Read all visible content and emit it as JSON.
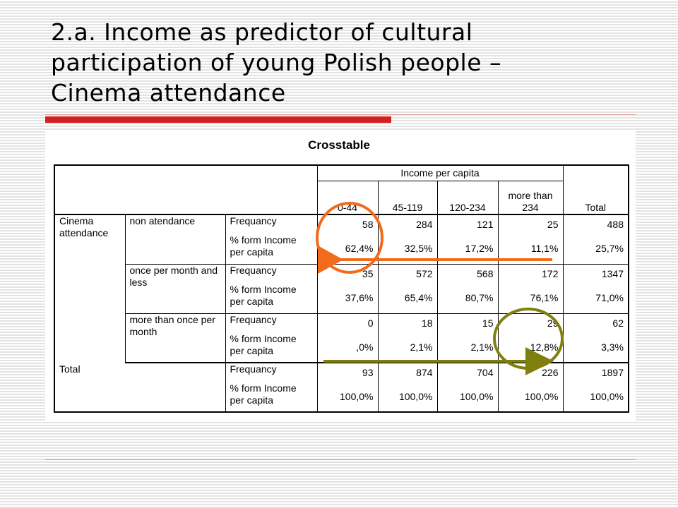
{
  "slide": {
    "title_lines": [
      "2.a. Income as predictor of cultural",
      "participation of young Polish people –",
      "Cinema attendance"
    ]
  },
  "table": {
    "title": "Crosstable",
    "group_header": "Income per capita",
    "columns": [
      "0-44",
      "45-119",
      "120-234",
      "more than 234",
      "Total"
    ],
    "row_variable": "Cinema attendance",
    "stat_labels": {
      "frequency": "Frequancy",
      "percent": "% form Income per capita"
    },
    "groups": [
      {
        "label": "non atendance",
        "frequency": [
          "58",
          "284",
          "121",
          "25",
          "488"
        ],
        "percent": [
          "62,4%",
          "32,5%",
          "17,2%",
          "11,1%",
          "25,7%"
        ]
      },
      {
        "label": "once per month and less",
        "frequency": [
          "35",
          "572",
          "568",
          "172",
          "1347"
        ],
        "percent": [
          "37,6%",
          "65,4%",
          "80,7%",
          "76,1%",
          "71,0%"
        ]
      },
      {
        "label": "more than once per month",
        "frequency": [
          "0",
          "18",
          "15",
          "29",
          "62"
        ],
        "percent": [
          ",0%",
          "2,1%",
          "2,1%",
          "12,8%",
          "3,3%"
        ]
      },
      {
        "label": "Total",
        "frequency": [
          "93",
          "874",
          "704",
          "226",
          "1897"
        ],
        "percent": [
          "100,0%",
          "100,0%",
          "100,0%",
          "100,0%",
          "100,0%"
        ]
      }
    ]
  },
  "colors": {
    "title_bar": "#d42020",
    "highlight_orange": "#f26b1d",
    "highlight_olive": "#7f7f10"
  }
}
